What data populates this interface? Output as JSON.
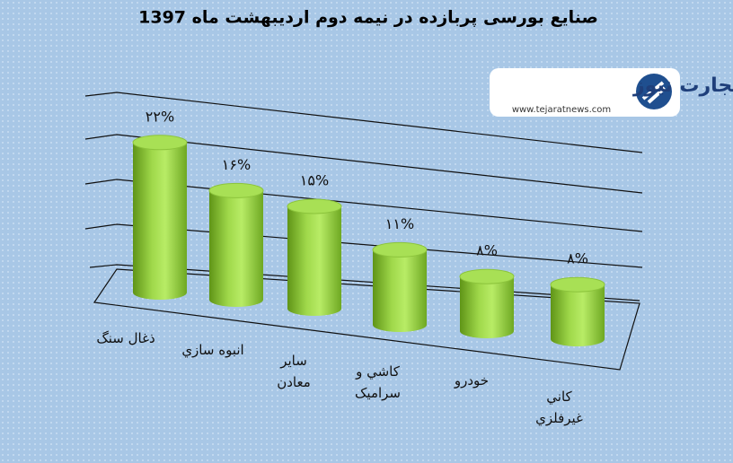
{
  "chart_data": {
    "type": "bar",
    "title": "صنایع بورسی پربازده در نیمه دوم اردیبهشت ماه 1397",
    "categories": [
      "ذغال سنگ",
      "انبوه سازي",
      "ساير معادن",
      "كاشي و سراميک",
      "خودرو",
      "كاني غيرفلزي"
    ],
    "values": [
      22,
      16,
      15,
      11,
      8,
      8
    ],
    "value_labels": [
      "۲۲%",
      "۱۶%",
      "۱۵%",
      "۱۱%",
      "۸%",
      "۸%"
    ],
    "color": "#92d050",
    "ylim": [
      0,
      25
    ]
  },
  "logo": {
    "name": "تجارت نیوز",
    "url": "www.tejaratnews.com"
  }
}
